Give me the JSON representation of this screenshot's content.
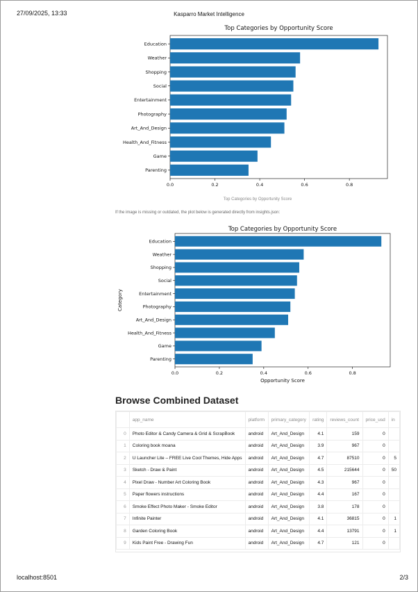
{
  "header": {
    "date": "27/09/2025, 13:33",
    "title": "Kasparro Market Intelligence"
  },
  "chart_data": [
    {
      "type": "bar",
      "orientation": "horizontal",
      "title": "Top Categories by Opportunity Score",
      "xlabel": "",
      "ylabel": "",
      "categories": [
        "Education",
        "Weather",
        "Shopping",
        "Social",
        "Entertainment",
        "Photography",
        "Art_And_Design",
        "Health_And_Fitness",
        "Game",
        "Parenting"
      ],
      "values": [
        0.93,
        0.58,
        0.56,
        0.55,
        0.54,
        0.52,
        0.51,
        0.45,
        0.39,
        0.35
      ],
      "xlim": [
        0,
        0.97
      ],
      "xticks": [
        "0.0",
        "0.2",
        "0.4",
        "0.6",
        "0.8"
      ],
      "grid": false,
      "color": "#1f77b4"
    },
    {
      "type": "bar",
      "orientation": "horizontal",
      "title": "Top Categories by Opportunity Score",
      "xlabel": "Opportunity Score",
      "ylabel": "Category",
      "categories": [
        "Education",
        "Weather",
        "Shopping",
        "Social",
        "Entertainment",
        "Photography",
        "Art_And_Design",
        "Health_And_Fitness",
        "Game",
        "Parenting"
      ],
      "values": [
        0.93,
        0.58,
        0.56,
        0.55,
        0.54,
        0.52,
        0.51,
        0.45,
        0.39,
        0.35
      ],
      "xlim": [
        0,
        0.97
      ],
      "xticks": [
        "0.0",
        "0.2",
        "0.4",
        "0.6",
        "0.8"
      ],
      "grid": false,
      "color": "#1f77b4"
    }
  ],
  "caption": "Top Categories by Opportunity Score",
  "note": "If the image is missing or outdated, the plot below is generated directly from insights.json:",
  "dataset": {
    "title": "Browse Combined Dataset",
    "columns": [
      "",
      "app_name",
      "platform",
      "primary_category",
      "rating",
      "reviews_count",
      "price_usd",
      "in"
    ],
    "rows": [
      [
        "0",
        "Photo Editor & Candy Camera & Grid & ScrapBook",
        "android",
        "Art_And_Design",
        "4.1",
        "159",
        "0",
        ""
      ],
      [
        "1",
        "Coloring book moana",
        "android",
        "Art_And_Design",
        "3.9",
        "967",
        "0",
        ""
      ],
      [
        "2",
        "U Launcher Lite – FREE Live Cool Themes, Hide Apps",
        "android",
        "Art_And_Design",
        "4.7",
        "87510",
        "0",
        "5"
      ],
      [
        "3",
        "Sketch - Draw & Paint",
        "android",
        "Art_And_Design",
        "4.5",
        "215644",
        "0",
        "50"
      ],
      [
        "4",
        "Pixel Draw - Number Art Coloring Book",
        "android",
        "Art_And_Design",
        "4.3",
        "967",
        "0",
        ""
      ],
      [
        "5",
        "Paper flowers instructions",
        "android",
        "Art_And_Design",
        "4.4",
        "167",
        "0",
        ""
      ],
      [
        "6",
        "Smoke Effect Photo Maker - Smoke Editor",
        "android",
        "Art_And_Design",
        "3.8",
        "178",
        "0",
        ""
      ],
      [
        "7",
        "Infinite Painter",
        "android",
        "Art_And_Design",
        "4.1",
        "36815",
        "0",
        "1"
      ],
      [
        "8",
        "Garden Coloring Book",
        "android",
        "Art_And_Design",
        "4.4",
        "13791",
        "0",
        "1"
      ],
      [
        "9",
        "Kids Paint Free - Drawing Fun",
        "android",
        "Art_And_Design",
        "4.7",
        "121",
        "0",
        ""
      ]
    ]
  },
  "footer": {
    "url": "localhost:8501",
    "page": "2/3"
  }
}
